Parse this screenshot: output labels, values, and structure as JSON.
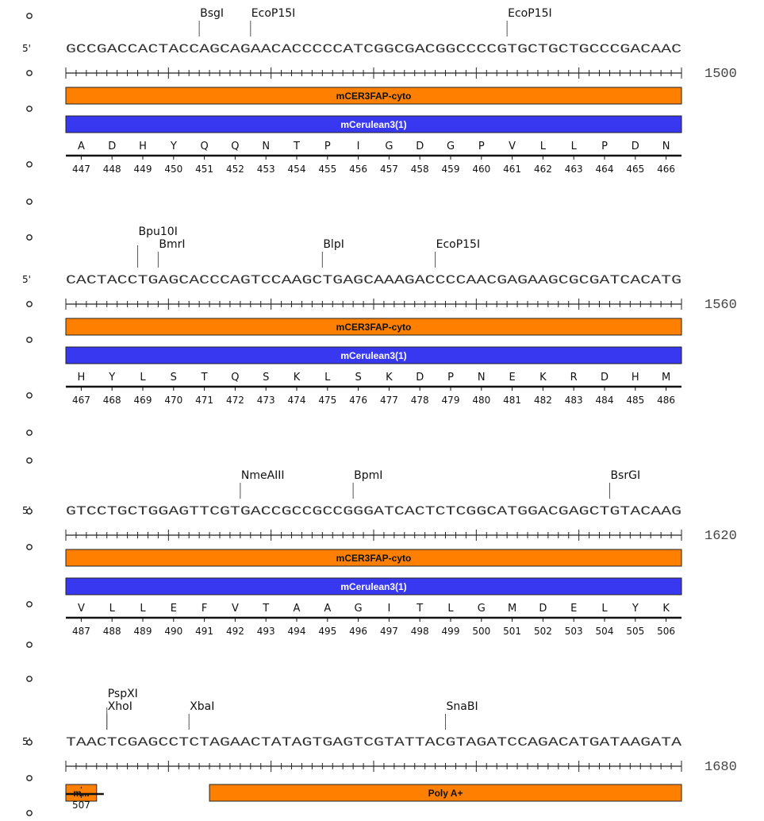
{
  "strand_label": "5'",
  "colors": {
    "orange": "#ff8000",
    "blue": "#3838f0",
    "line": "#222222"
  },
  "blocks": [
    {
      "seq": "GCCGACCACTACCAGCAGAACACCCCCATCGGCGACGGCCCCGTGCTGCTGCCCGACAAC",
      "end": "1500",
      "sites": [
        {
          "name": "BsgI",
          "pos": 13
        },
        {
          "name": "EcoP15I",
          "pos": 18
        },
        {
          "name": "EcoP15I",
          "pos": 43
        }
      ],
      "features": [
        {
          "label": "mCER3FAP-cyto",
          "color": "orange",
          "start": 0,
          "end": 60
        },
        {
          "label": "mCerulean3(1)",
          "color": "blue",
          "start": 0,
          "end": 60
        }
      ],
      "aa": [
        "A",
        "D",
        "H",
        "Y",
        "Q",
        "Q",
        "N",
        "T",
        "P",
        "I",
        "G",
        "D",
        "G",
        "P",
        "V",
        "L",
        "L",
        "P",
        "D",
        "N"
      ],
      "aa_start": 447
    },
    {
      "seq": "CACTACCTGAGCACCCAGTCCAAGCTGAGCAAAGACCCCAACGAGAAGCGCGATCACATG",
      "end": "1560",
      "sites": [
        {
          "name": "Bpu10I",
          "pos": 7,
          "level": 2
        },
        {
          "name": "BmrI",
          "pos": 9,
          "level": 1
        },
        {
          "name": "BlpI",
          "pos": 25,
          "level": 1
        },
        {
          "name": "EcoP15I",
          "pos": 36,
          "level": 1
        }
      ],
      "features": [
        {
          "label": "mCER3FAP-cyto",
          "color": "orange",
          "start": 0,
          "end": 60
        },
        {
          "label": "mCerulean3(1)",
          "color": "blue",
          "start": 0,
          "end": 60
        }
      ],
      "aa": [
        "H",
        "Y",
        "L",
        "S",
        "T",
        "Q",
        "S",
        "K",
        "L",
        "S",
        "K",
        "D",
        "P",
        "N",
        "E",
        "K",
        "R",
        "D",
        "H",
        "M"
      ],
      "aa_start": 467
    },
    {
      "seq": "GTCCTGCTGGAGTTCGTGACCGCCGCCGGGATCACTCTCGGCATGGACGAGCTGTACAAG",
      "end": "1620",
      "sites": [
        {
          "name": "NmeAIII",
          "pos": 17
        },
        {
          "name": "BpmI",
          "pos": 28
        },
        {
          "name": "BsrGI",
          "pos": 53
        }
      ],
      "features": [
        {
          "label": "mCER3FAP-cyto",
          "color": "orange",
          "start": 0,
          "end": 60
        },
        {
          "label": "mCerulean3(1)",
          "color": "blue",
          "start": 0,
          "end": 60
        }
      ],
      "aa": [
        "V",
        "L",
        "L",
        "E",
        "F",
        "V",
        "T",
        "A",
        "A",
        "G",
        "I",
        "T",
        "L",
        "G",
        "M",
        "D",
        "E",
        "L",
        "Y",
        "K"
      ],
      "aa_start": 487
    },
    {
      "seq": "TAACTCGAGCCTCTAGAACTATAGTGAGTCGTATTACGTAGATCCAGACATGATAAGATA",
      "end": "1680",
      "sites": [
        {
          "name": "PspXI",
          "pos": 4,
          "level": 2
        },
        {
          "name": "XhoI",
          "pos": 4,
          "level": 1
        },
        {
          "name": "XbaI",
          "pos": 12,
          "level": 1
        },
        {
          "name": "SnaBI",
          "pos": 37,
          "level": 1
        }
      ],
      "features": [
        {
          "label": "m...",
          "color": "orange",
          "start": 0,
          "end": 3
        },
        {
          "label": "Poly A+",
          "color": "orange",
          "start": 14,
          "end": 60
        }
      ],
      "aa": [
        "."
      ],
      "aa_start": 507
    }
  ]
}
